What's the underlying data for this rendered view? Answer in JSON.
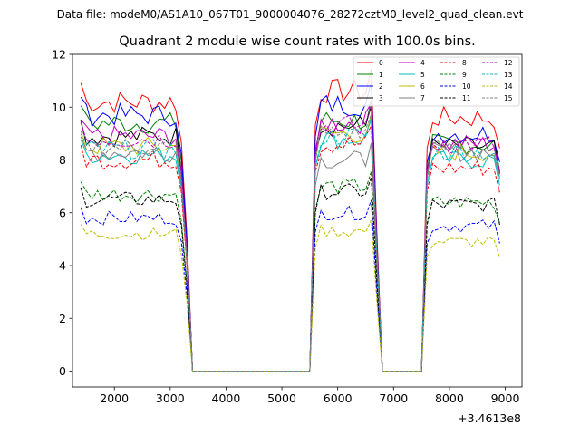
{
  "suptitle": "Data file: modeM0/AS1A10_067T01_9000004076_28272cztM0_level2_quad_clean.evt",
  "chart_data": {
    "type": "line",
    "title": "Quadrant 2 module wise count rates with 100.0s bins.",
    "xlabel": "",
    "ylabel": "",
    "x_offset_label": "+3.4613e8",
    "xlim": [
      1250,
      9300
    ],
    "ylim": [
      -0.6,
      12.0
    ],
    "xticks": [
      2000,
      3000,
      4000,
      5000,
      6000,
      7000,
      8000,
      9000
    ],
    "xtick_labels": [
      "2000",
      "3000",
      "4000",
      "5000",
      "6000",
      "7000",
      "8000",
      "9000"
    ],
    "yticks": [
      0,
      2,
      4,
      6,
      8,
      10,
      12
    ],
    "ytick_labels": [
      "0",
      "2",
      "4",
      "6",
      "8",
      "10",
      "12"
    ],
    "grid": false,
    "legend_position": "top-right",
    "segments": [
      {
        "start": 1400,
        "end": 3200,
        "npoints": 19
      },
      {
        "start": 5600,
        "end": 6600,
        "npoints": 11
      },
      {
        "start": 7600,
        "end": 8900,
        "npoints": 14
      }
    ],
    "zero_level": 0,
    "series": [
      {
        "name": "0",
        "color": "#ff0000",
        "dash": "solid",
        "levels": [
          10.2,
          10.6,
          9.6
        ]
      },
      {
        "name": "1",
        "color": "#008000",
        "dash": "solid",
        "levels": [
          9.4,
          9.5,
          8.6
        ]
      },
      {
        "name": "2",
        "color": "#0000ff",
        "dash": "solid",
        "levels": [
          9.7,
          10.1,
          9.0
        ]
      },
      {
        "name": "3",
        "color": "#000000",
        "dash": "solid",
        "levels": [
          8.9,
          9.3,
          8.5
        ]
      },
      {
        "name": "4",
        "color": "#bf00bf",
        "dash": "solid",
        "levels": [
          8.9,
          9.4,
          8.6
        ]
      },
      {
        "name": "5",
        "color": "#00bfbf",
        "dash": "solid",
        "levels": [
          8.2,
          8.8,
          8.0
        ]
      },
      {
        "name": "6",
        "color": "#bfbf00",
        "dash": "solid",
        "levels": [
          8.5,
          9.0,
          8.3
        ]
      },
      {
        "name": "7",
        "color": "#808080",
        "dash": "solid",
        "levels": [
          8.3,
          8.0,
          8.3
        ]
      },
      {
        "name": "8",
        "color": "#ff0000",
        "dash": "dashed",
        "levels": [
          8.0,
          8.6,
          7.7
        ]
      },
      {
        "name": "9",
        "color": "#008000",
        "dash": "dashed",
        "levels": [
          6.7,
          7.0,
          6.4
        ]
      },
      {
        "name": "10",
        "color": "#0000ff",
        "dash": "dashed",
        "levels": [
          5.8,
          6.0,
          5.5
        ]
      },
      {
        "name": "11",
        "color": "#000000",
        "dash": "dashed",
        "levels": [
          6.5,
          6.8,
          6.3
        ]
      },
      {
        "name": "12",
        "color": "#bf00bf",
        "dash": "dashed",
        "levels": [
          8.8,
          9.3,
          8.6
        ]
      },
      {
        "name": "13",
        "color": "#00bfbf",
        "dash": "dashed",
        "levels": [
          8.4,
          8.9,
          8.3
        ]
      },
      {
        "name": "14",
        "color": "#bfbf00",
        "dash": "dashed",
        "levels": [
          5.2,
          5.3,
          4.9
        ]
      },
      {
        "name": "15",
        "color": "#808080",
        "dash": "dashed",
        "levels": [
          8.5,
          9.0,
          8.4
        ]
      }
    ]
  }
}
